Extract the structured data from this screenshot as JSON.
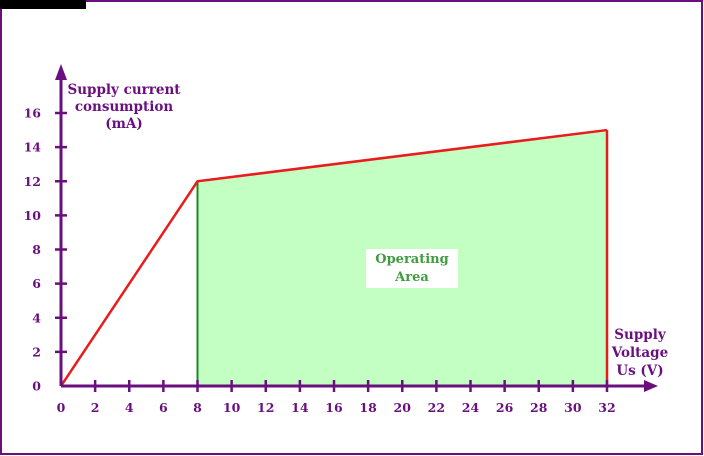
{
  "colors": {
    "frame": "#6a0f7e",
    "axis": "#6a0f7e",
    "label": "#6a0f7e",
    "curve": "#e81c1c",
    "fill": "#c3ffc3",
    "fill_edge": "#1f8a1f",
    "area_text": "#3f9d3f",
    "corner_tab": "#000000"
  },
  "chart_data": {
    "type": "line",
    "xlabel": "Supply Voltage Us (V)",
    "xlabel_lines": [
      "Supply",
      "Voltage",
      "Us (V)"
    ],
    "ylabel": "Supply current consumption (mA)",
    "ylabel_lines": [
      "Supply  current",
      "consumption",
      "(mA)"
    ],
    "xlim": [
      0,
      32
    ],
    "ylim": [
      0,
      16
    ],
    "x_ticks": [
      0,
      2,
      4,
      6,
      8,
      10,
      12,
      14,
      16,
      18,
      20,
      22,
      24,
      26,
      28,
      30,
      32
    ],
    "y_ticks": [
      0,
      2,
      4,
      6,
      8,
      10,
      12,
      14,
      16
    ],
    "series": [
      {
        "points": [
          [
            0,
            0
          ],
          [
            8,
            12
          ],
          [
            32,
            15
          ]
        ]
      }
    ],
    "shaded_region": {
      "polygon": [
        [
          8,
          0
        ],
        [
          8,
          12
        ],
        [
          32,
          15
        ],
        [
          32,
          0
        ]
      ],
      "label_lines": [
        "Operating",
        "Area"
      ]
    },
    "grid": false
  }
}
